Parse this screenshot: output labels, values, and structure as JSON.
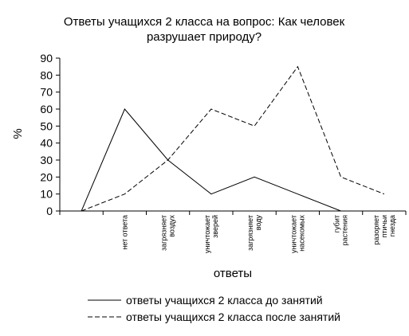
{
  "chart_data": {
    "type": "line",
    "title": "Ответы учащихся 2 класса на вопрос: Как человек разрушает природу?",
    "title_lines": [
      "Ответы учащихся 2 класса на вопрос: Как человек",
      "разрушает природу?"
    ],
    "xlabel": "ответы",
    "ylabel": "%",
    "ylim": [
      0,
      90
    ],
    "yticks": [
      0,
      10,
      20,
      30,
      40,
      50,
      60,
      70,
      80,
      90
    ],
    "categories": [
      "",
      "нет ответа",
      "загрязняет воздух",
      "уничтожает зверей",
      "загрязняет воду",
      "уничтожает насекомых",
      "губит растения",
      "разоряет птичьи гнезда"
    ],
    "category_lines": [
      [],
      [
        "нет ответа"
      ],
      [
        "загрязняет",
        "воздух"
      ],
      [
        "уничтожает",
        "зверей"
      ],
      [
        "загрязняет",
        "воду"
      ],
      [
        "уничтожает",
        "насекомых"
      ],
      [
        "губит",
        "растения"
      ],
      [
        "разоряет",
        "птичьи",
        "гнезда"
      ]
    ],
    "series": [
      {
        "name": "ответы учащихся 2 класса до занятий",
        "style": "solid",
        "color": "#000000",
        "values": [
          0,
          60,
          30,
          10,
          20,
          10,
          0,
          null
        ]
      },
      {
        "name": "ответы учащихся 2 класса после занятий",
        "style": "dashed",
        "color": "#000000",
        "values": [
          0,
          10,
          30,
          60,
          50,
          85,
          20,
          10
        ]
      }
    ],
    "grid": false,
    "legend_position": "bottom"
  }
}
